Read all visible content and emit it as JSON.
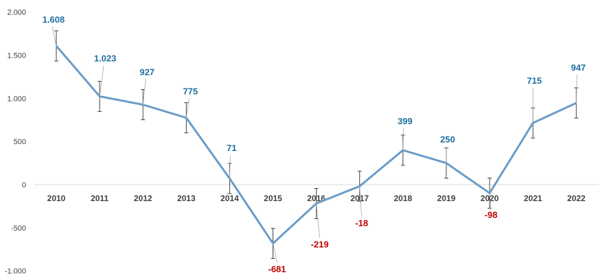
{
  "chart_data": {
    "type": "line",
    "title": "",
    "xlabel": "",
    "ylabel": "",
    "categories": [
      "2010",
      "2011",
      "2012",
      "2013",
      "2014",
      "2015",
      "2016",
      "2017",
      "2018",
      "2019",
      "2020",
      "2021",
      "2022"
    ],
    "series": [
      {
        "values": [
          1608,
          1023,
          927,
          775,
          71,
          -681,
          -219,
          -18,
          399,
          250,
          -98,
          715,
          947
        ],
        "error": 175
      }
    ],
    "data_labels": [
      "1.608",
      "1.023",
      "927",
      "775",
      "71",
      "-681",
      "-219",
      "-18",
      "399",
      "250",
      "-98",
      "715",
      "947"
    ],
    "y_tick_labels": [
      "2.000",
      "1.500",
      "1.000",
      "500",
      "0",
      "-500",
      "-1.000"
    ],
    "y_tick_values": [
      2000,
      1500,
      1000,
      500,
      0,
      -500,
      -1000
    ],
    "ylim": [
      -1000,
      2000
    ],
    "grid": false,
    "legend": "none",
    "colors": {
      "line": "#6a9cc8",
      "positive_label": "#1f6fa3",
      "negative_label": "#c00000",
      "axis": "#d9d9d9",
      "error_bar": "#404040",
      "leader": "#a6a6a6"
    }
  }
}
